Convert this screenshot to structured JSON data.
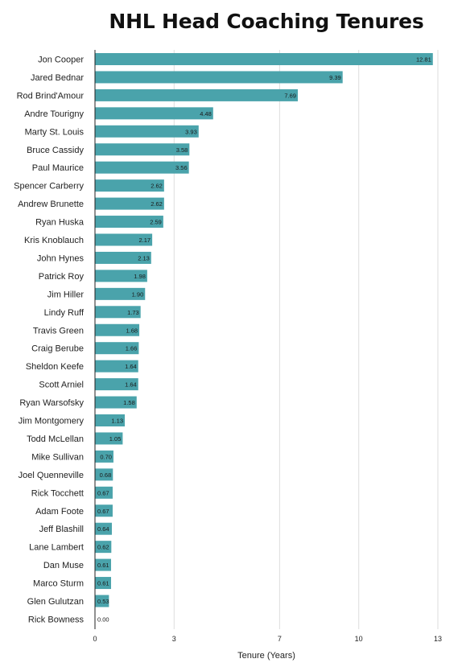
{
  "chart_data": {
    "type": "bar",
    "orientation": "horizontal",
    "title": "NHL Head Coaching Tenures",
    "xlabel": "Tenure (Years)",
    "ylabel": "",
    "xlim": [
      0,
      13
    ],
    "xticks": [
      0,
      3,
      7,
      10,
      13
    ],
    "grid": true,
    "bar_color": "#4aa3ab",
    "categories": [
      "Jon Cooper",
      "Jared Bednar",
      "Rod Brind'Amour",
      "Andre Tourigny",
      "Marty St. Louis",
      "Bruce Cassidy",
      "Paul Maurice",
      "Spencer Carberry",
      "Andrew Brunette",
      "Ryan Huska",
      "Kris Knoblauch",
      "John Hynes",
      "Patrick Roy",
      "Jim Hiller",
      "Lindy Ruff",
      "Travis Green",
      "Craig Berube",
      "Sheldon Keefe",
      "Scott Arniel",
      "Ryan Warsofsky",
      "Jim Montgomery",
      "Todd McLellan",
      "Mike Sullivan",
      "Joel Quenneville",
      "Rick Tocchett",
      "Adam Foote",
      "Jeff Blashill",
      "Lane Lambert",
      "Dan Muse",
      "Marco Sturm",
      "Glen Gulutzan",
      "Rick Bowness"
    ],
    "values": [
      12.81,
      9.39,
      7.69,
      4.48,
      3.93,
      3.58,
      3.56,
      2.62,
      2.62,
      2.59,
      2.17,
      2.13,
      1.98,
      1.9,
      1.73,
      1.68,
      1.66,
      1.64,
      1.64,
      1.58,
      1.13,
      1.05,
      0.7,
      0.68,
      0.67,
      0.67,
      0.64,
      0.62,
      0.61,
      0.61,
      0.53,
      0.0
    ],
    "value_labels": [
      "12.81",
      "9.39",
      "7.69",
      "4.48",
      "3.93",
      "3.58",
      "3.56",
      "2.62",
      "2.62",
      "2.59",
      "2.17",
      "2.13",
      "1.98",
      "1.90",
      "1.73",
      "1.68",
      "1.66",
      "1.64",
      "1.64",
      "1.58",
      "1.13",
      "1.05",
      "0.70",
      "0.68",
      "0.67",
      "0.67",
      "0.64",
      "0.62",
      "0.61",
      "0.61",
      "0.53",
      "0.00"
    ]
  }
}
